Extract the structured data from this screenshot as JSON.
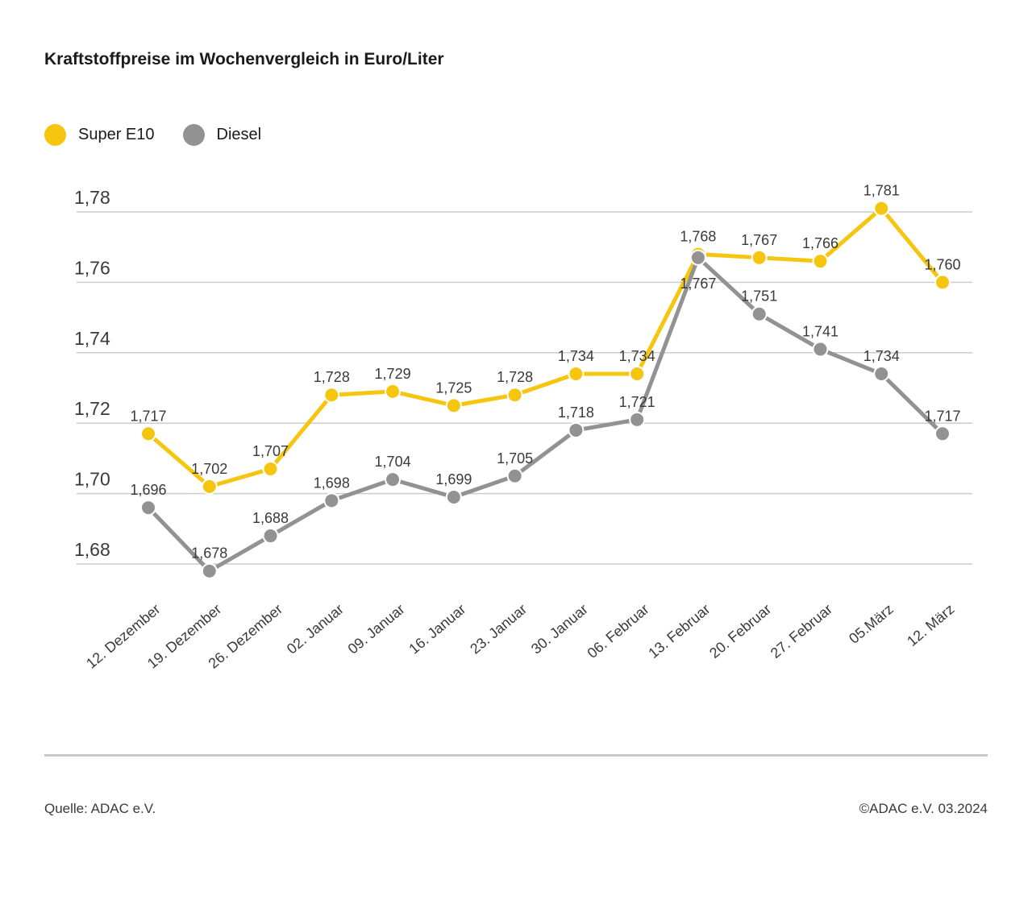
{
  "title": "Kraftstoffpreise im Wochenvergleich in Euro/Liter",
  "legend": [
    {
      "label": "Super E10",
      "color": "#F6C50F"
    },
    {
      "label": "Diesel",
      "color": "#929292"
    }
  ],
  "chart_data": {
    "type": "line",
    "title": "Kraftstoffpreise im Wochenvergleich in Euro/Liter",
    "categories": [
      "12. Dezember",
      "19. Dezember",
      "26. Dezember",
      "02. Januar",
      "09. Januar",
      "16. Januar",
      "23. Januar",
      "30. Januar",
      "06. Februar",
      "13. Februar",
      "20. Februar",
      "27. Februar",
      "05.März",
      "12. März"
    ],
    "series": [
      {
        "name": "Super E10",
        "color": "#F6C50F",
        "values": [
          1.717,
          1.702,
          1.707,
          1.728,
          1.729,
          1.725,
          1.728,
          1.734,
          1.734,
          1.768,
          1.767,
          1.766,
          1.781,
          1.76
        ]
      },
      {
        "name": "Diesel",
        "color": "#929292",
        "values": [
          1.696,
          1.678,
          1.688,
          1.698,
          1.704,
          1.699,
          1.705,
          1.718,
          1.721,
          1.767,
          1.751,
          1.741,
          1.734,
          1.717
        ]
      }
    ],
    "yticks": [
      1.68,
      1.7,
      1.72,
      1.74,
      1.76,
      1.78
    ],
    "ylim": [
      1.668,
      1.792
    ],
    "grid": true,
    "grid_color": "#cccccc",
    "text_color": "#3a3a3a",
    "legend_position": "top-left",
    "decimal_separator": ","
  },
  "footer": {
    "source": "Quelle: ADAC e.V.",
    "copyright": "©ADAC e.V. 03.2024"
  }
}
